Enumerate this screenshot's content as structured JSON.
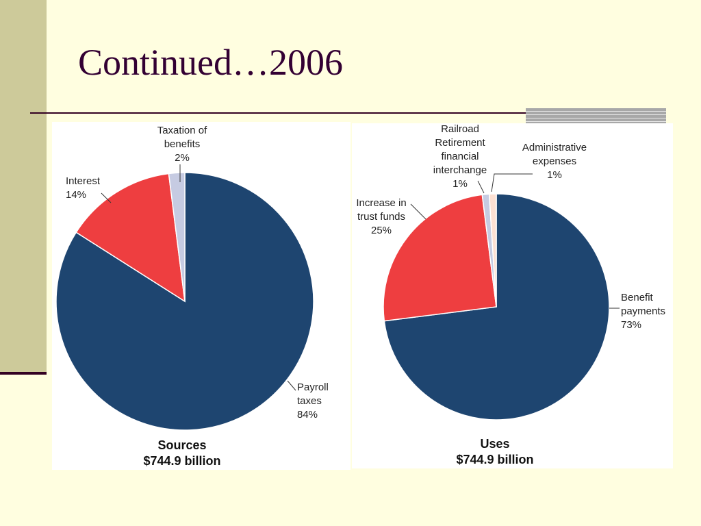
{
  "slide": {
    "title": "Continued…2006"
  },
  "chart_data": [
    {
      "type": "pie",
      "caption": [
        "Sources",
        "$744.9 billion"
      ],
      "start_at": "top",
      "direction": "clockwise",
      "slices": [
        {
          "label": [
            "Payroll",
            "taxes",
            "84%"
          ],
          "value": 84,
          "color": "#1e4570"
        },
        {
          "label": [
            "Interest",
            "14%"
          ],
          "value": 14,
          "color": "#ee3e40"
        },
        {
          "label": [
            "Taxation of",
            "benefits",
            "2%"
          ],
          "value": 2,
          "color": "#c6cbe2"
        }
      ]
    },
    {
      "type": "pie",
      "caption": [
        "Uses",
        "$744.9 billion"
      ],
      "start_at": "top",
      "direction": "clockwise",
      "slices": [
        {
          "label": [
            "Benefit",
            "payments",
            "73%"
          ],
          "value": 73,
          "color": "#1e4570"
        },
        {
          "label": [
            "Increase in",
            "trust funds",
            "25%"
          ],
          "value": 25,
          "color": "#ee3e40"
        },
        {
          "label": [
            "Railroad",
            "Retirement",
            "financial",
            "interchange",
            "1%"
          ],
          "value": 1,
          "color": "#c6cbe2"
        },
        {
          "label": [
            "Administrative",
            "expenses",
            "1%"
          ],
          "value": 1,
          "color": "#fde0d2"
        }
      ]
    }
  ]
}
